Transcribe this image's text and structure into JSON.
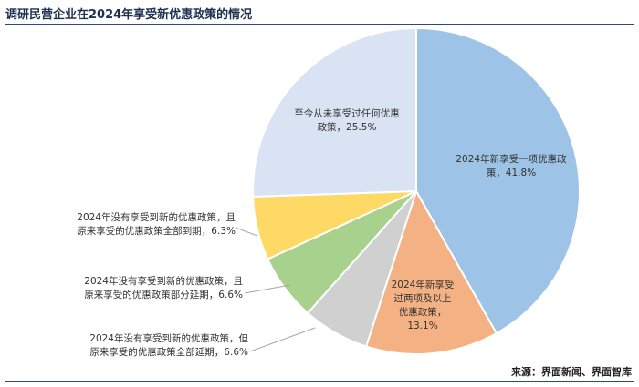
{
  "header": {
    "title": "调研民营企业在2024年享受新优惠政策的情况"
  },
  "footer": {
    "source": "来源：界面新闻、界面智库"
  },
  "chart_data": {
    "type": "pie",
    "title": "调研民营企业在2024年享受新优惠政策的情况",
    "start_angle_deg": 0,
    "direction": "clockwise",
    "slices": [
      {
        "label_lines": [
          "2024年新享受一项优惠政",
          "策，41.8%"
        ],
        "value": 41.8,
        "color": "#9dc3e6"
      },
      {
        "label_lines": [
          "2024年新享受",
          "过两项及以上",
          "优惠政策，",
          "13.1%"
        ],
        "value": 13.1,
        "color": "#f4b183"
      },
      {
        "label_lines": [
          "2024年没有享受到新的优惠政策，但",
          "原来享受的优惠政策全部延期，6.6%"
        ],
        "value": 6.6,
        "color": "#d0d0d0"
      },
      {
        "label_lines": [
          "2024年没有享受到新的优惠政策，且",
          "原来享受的优惠政策部分延期，6.6%"
        ],
        "value": 6.6,
        "color": "#a9d18e"
      },
      {
        "label_lines": [
          "2024年没有享受到新的优惠政策，且",
          "原来享受的优惠政策全部到期，6.3%"
        ],
        "value": 6.3,
        "color": "#ffd966"
      },
      {
        "label_lines": [
          "至今从未享受过任何优惠",
          "政策，25.5%"
        ],
        "value": 25.5,
        "color": "#dae3f3"
      }
    ]
  }
}
